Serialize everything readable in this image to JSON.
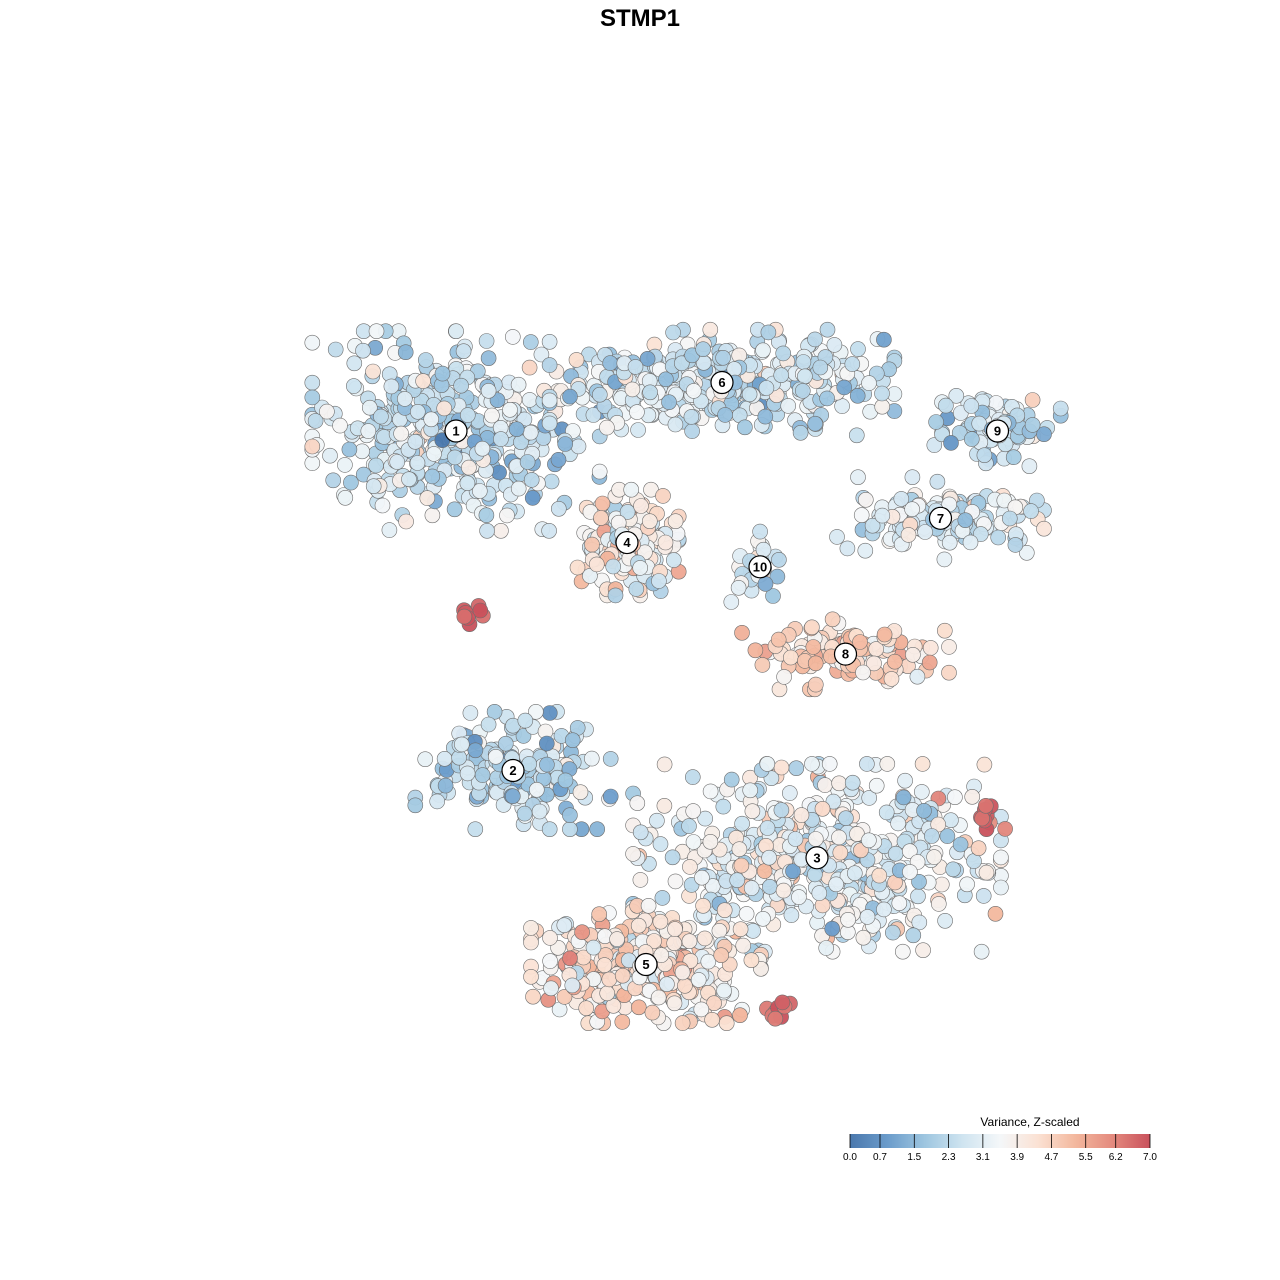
{
  "chart_data": {
    "type": "scatter",
    "title": "STMP1",
    "grid": false,
    "color_scale": {
      "title": "Variance, Z-scaled",
      "range": [
        0.0,
        7.0
      ],
      "ticks": [
        "0.0",
        "0.7",
        "1.5",
        "2.3",
        "3.1",
        "3.9",
        "4.7",
        "5.5",
        "6.2",
        "7.0"
      ],
      "stops": [
        "#4a78ad",
        "#6b9ccb",
        "#9ec6e0",
        "#cfe4f0",
        "#f4f7f9",
        "#fbe2d4",
        "#f3b89e",
        "#e48a7e",
        "#c9515c"
      ],
      "placement": "bottom-right"
    },
    "clusters": [
      {
        "label": "1",
        "x": -2.2,
        "y": 2.0,
        "sx": 1.25,
        "sy": 0.85,
        "n": 430,
        "mean": 2.6,
        "sd": 0.8
      },
      {
        "label": "6",
        "x": 0.6,
        "y": 2.5,
        "sx": 1.5,
        "sy": 0.45,
        "n": 360,
        "mean": 2.7,
        "sd": 0.75
      },
      {
        "label": "4",
        "x": -0.4,
        "y": 0.85,
        "sx": 0.45,
        "sy": 0.45,
        "n": 170,
        "mean": 3.7,
        "sd": 1.0
      },
      {
        "label": "10",
        "x": 1.0,
        "y": 0.6,
        "sx": 0.25,
        "sy": 0.3,
        "n": 30,
        "mean": 3.2,
        "sd": 0.8
      },
      {
        "label": "9",
        "x": 3.5,
        "y": 2.0,
        "sx": 0.55,
        "sy": 0.3,
        "n": 90,
        "mean": 2.6,
        "sd": 0.7
      },
      {
        "label": "7",
        "x": 2.9,
        "y": 1.1,
        "sx": 0.9,
        "sy": 0.35,
        "n": 150,
        "mean": 2.9,
        "sd": 0.8
      },
      {
        "label": "8",
        "x": 1.9,
        "y": -0.3,
        "sx": 0.9,
        "sy": 0.3,
        "n": 120,
        "mean": 4.5,
        "sd": 0.7
      },
      {
        "label": "2",
        "x": -1.6,
        "y": -1.5,
        "sx": 0.85,
        "sy": 0.5,
        "n": 180,
        "mean": 2.4,
        "sd": 0.8
      },
      {
        "label": "3",
        "x": 1.6,
        "y": -2.4,
        "sx": 1.6,
        "sy": 0.8,
        "n": 520,
        "mean": 3.2,
        "sd": 0.8
      },
      {
        "label": "5",
        "x": -0.2,
        "y": -3.5,
        "sx": 1.0,
        "sy": 0.5,
        "n": 300,
        "mean": 4.2,
        "sd": 0.8
      }
    ],
    "hotspots": [
      {
        "x": 3.4,
        "y": -2.0,
        "value": 6.6
      },
      {
        "x": 1.2,
        "y": -3.95,
        "value": 6.7
      },
      {
        "x": -2.05,
        "y": 0.1,
        "value": 6.9
      }
    ],
    "xlim": [
      -5.0,
      5.0
    ],
    "ylim": [
      -5.0,
      5.0
    ]
  }
}
